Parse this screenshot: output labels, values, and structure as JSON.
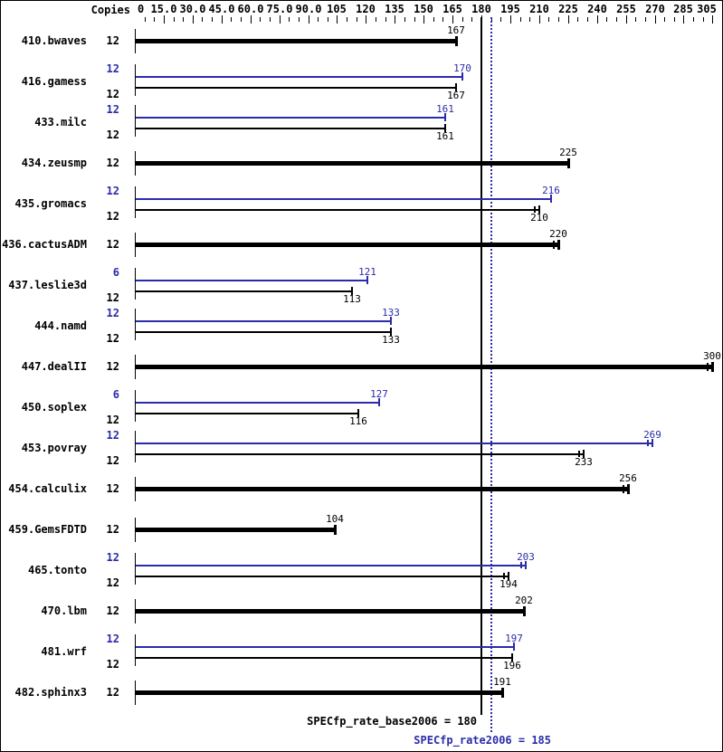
{
  "header": {
    "copies_label": "Copies"
  },
  "colors": {
    "base": "#000000",
    "peak": "#2b2baa",
    "background": "#ffffff",
    "border": "#000000"
  },
  "chart_data": {
    "type": "bar",
    "orientation": "horizontal",
    "copies_column_label": "Copies",
    "axis": {
      "position": "top",
      "tick_step": 15,
      "minor_tick_step": 5,
      "range": [
        0,
        305
      ],
      "tick_labels": [
        "0",
        "15.0",
        "30.0",
        "45.0",
        "60.0",
        "75.0",
        "90.0",
        "105",
        "120",
        "135",
        "150",
        "165",
        "180",
        "195",
        "210",
        "225",
        "240",
        "255",
        "270",
        "285",
        "305"
      ]
    },
    "benchmarks": [
      {
        "name": "410.bwaves",
        "peak": null,
        "base": {
          "copies": 12,
          "value": 167
        }
      },
      {
        "name": "416.gamess",
        "peak": {
          "copies": 12,
          "value": 170
        },
        "base": {
          "copies": 12,
          "value": 167
        }
      },
      {
        "name": "433.milc",
        "peak": {
          "copies": 12,
          "value": 161
        },
        "base": {
          "copies": 12,
          "value": 161
        }
      },
      {
        "name": "434.zeusmp",
        "peak": null,
        "base": {
          "copies": 12,
          "value": 225
        }
      },
      {
        "name": "435.gromacs",
        "peak": {
          "copies": 12,
          "value": 216
        },
        "base": {
          "copies": 12,
          "value": 210,
          "err": true
        }
      },
      {
        "name": "436.cactusADM",
        "peak": null,
        "base": {
          "copies": 12,
          "value": 220,
          "err": true
        }
      },
      {
        "name": "437.leslie3d",
        "peak": {
          "copies": 6,
          "value": 121
        },
        "base": {
          "copies": 12,
          "value": 113
        }
      },
      {
        "name": "444.namd",
        "peak": {
          "copies": 12,
          "value": 133
        },
        "base": {
          "copies": 12,
          "value": 133
        }
      },
      {
        "name": "447.dealII",
        "peak": null,
        "base": {
          "copies": 12,
          "value": 300,
          "err": true
        }
      },
      {
        "name": "450.soplex",
        "peak": {
          "copies": 6,
          "value": 127
        },
        "base": {
          "copies": 12,
          "value": 116
        }
      },
      {
        "name": "453.povray",
        "peak": {
          "copies": 12,
          "value": 269,
          "err": true
        },
        "base": {
          "copies": 12,
          "value": 233,
          "err": true
        }
      },
      {
        "name": "454.calculix",
        "peak": null,
        "base": {
          "copies": 12,
          "value": 256,
          "err": true
        }
      },
      {
        "name": "459.GemsFDTD",
        "peak": null,
        "base": {
          "copies": 12,
          "value": 104
        }
      },
      {
        "name": "465.tonto",
        "peak": {
          "copies": 12,
          "value": 203,
          "err": true
        },
        "base": {
          "copies": 12,
          "value": 194,
          "err": true
        }
      },
      {
        "name": "470.lbm",
        "peak": null,
        "base": {
          "copies": 12,
          "value": 202
        }
      },
      {
        "name": "481.wrf",
        "peak": {
          "copies": 12,
          "value": 197
        },
        "base": {
          "copies": 12,
          "value": 196
        }
      },
      {
        "name": "482.sphinx3",
        "peak": null,
        "base": {
          "copies": 12,
          "value": 191
        }
      }
    ],
    "reference_lines": [
      {
        "name": "base_mean",
        "value": 180,
        "style": "solid",
        "color": "#000000"
      },
      {
        "name": "peak_mean",
        "value": 185,
        "style": "dotted",
        "color": "#2b2baa"
      }
    ],
    "summary": {
      "base_label": "SPECfp_rate_base2006 = 180",
      "base_value": 180,
      "peak_label": "SPECfp_rate2006 = 185",
      "peak_value": 185
    }
  }
}
